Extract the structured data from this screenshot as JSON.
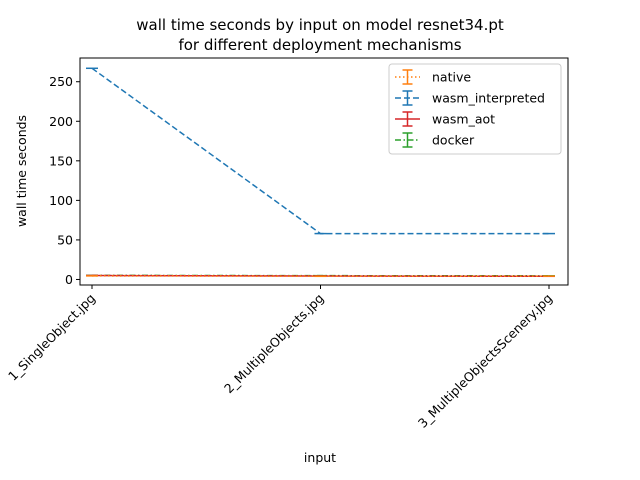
{
  "chart_data": {
    "type": "line",
    "title_line1": "wall time seconds by input on model resnet34.pt",
    "title_line2": "for different deployment mechanisms",
    "xlabel": "input",
    "ylabel": "wall time seconds",
    "categories": [
      "1_SingleObject.jpg",
      "2_MultipleObjects.jpg",
      "3_MultipleObjectsScenery.jpg"
    ],
    "ylim": [
      -7,
      280
    ],
    "yticks": [
      0,
      50,
      100,
      150,
      200,
      250
    ],
    "grid": false,
    "legend_position": "top-right",
    "series": [
      {
        "name": "native",
        "values": [
          4.5,
          4.0,
          4.2
        ],
        "color": "#ff7f0e",
        "linestyle": "dotted"
      },
      {
        "name": "wasm_interpreted",
        "values": [
          267,
          58,
          58
        ],
        "color": "#1f77b4",
        "linestyle": "dashed"
      },
      {
        "name": "wasm_aot",
        "values": [
          5.0,
          4.3,
          4.0
        ],
        "color": "#d62728",
        "linestyle": "solid"
      },
      {
        "name": "docker",
        "values": [
          5.2,
          4.8,
          4.6
        ],
        "color": "#2ca02c",
        "linestyle": "dashdot"
      }
    ]
  }
}
